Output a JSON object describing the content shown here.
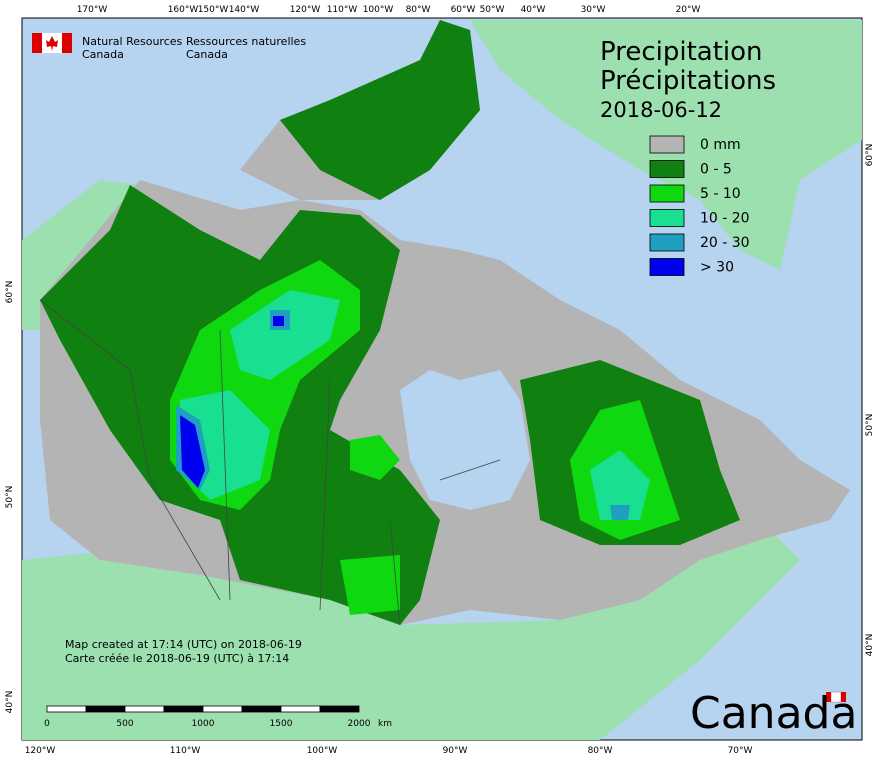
{
  "header": {
    "agency_en": [
      "Natural Resources",
      "Canada"
    ],
    "agency_fr": [
      "Ressources naturelles",
      "Canada"
    ]
  },
  "title": {
    "en": "Precipitation",
    "fr": "Précipitations",
    "date": "2018-06-12"
  },
  "legend": [
    {
      "label": "0 mm",
      "color": "#b4b4b4"
    },
    {
      "label": "0 - 5",
      "color": "#108010"
    },
    {
      "label": "5 - 10",
      "color": "#10d810"
    },
    {
      "label": "10 - 20",
      "color": "#18e090"
    },
    {
      "label": "20 - 30",
      "color": "#20a0c0"
    },
    {
      "label": "> 30",
      "color": "#0000f0"
    }
  ],
  "top_labels": [
    "170°W",
    "160°W",
    "150°W",
    "140°W",
    "120°W",
    "110°W",
    "100°W",
    "80°W",
    "60°W",
    "50°W",
    "40°W",
    "30°W",
    "20°W"
  ],
  "bottom_labels": [
    "120°W",
    "110°W",
    "100°W",
    "90°W",
    "80°W",
    "70°W"
  ],
  "left_labels": [
    "60°N",
    "50°N",
    "40°N"
  ],
  "right_labels": [
    "60°N",
    "50°N",
    "40°N"
  ],
  "notes": [
    "Map created at 17:14 (UTC) on 2018-06-19",
    "Carte créée le 2018-06-19 (UTC) à 17:14"
  ],
  "scale": {
    "labels": [
      "0",
      "500",
      "1000",
      "1500",
      "2000"
    ],
    "unit": "km"
  },
  "wordmark": "Canada"
}
